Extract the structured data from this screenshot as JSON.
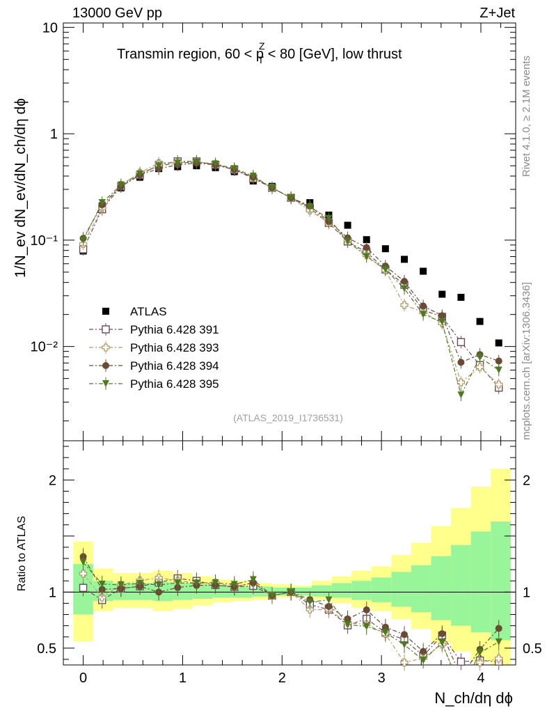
{
  "header": {
    "left": "13000 GeV pp",
    "right": "Z+Jet"
  },
  "side_labels": {
    "rivet": "Rivet 4.1.0, ≥ 2.1M events",
    "mcplots": "mcplots.cern.ch [arXiv:1306.3436]"
  },
  "chart_data": {
    "type": "scatter",
    "title_parts": [
      "Transmin region, 60 < p",
      "Z",
      "T",
      " < 80 [GeV], low thrust"
    ],
    "analysis_id": "(ATLAS_2019_I1736531)",
    "xlabel": "N_ch/dη dϕ",
    "ylabel": "1/N_ev dN_ev/dN_ch/dη dϕ",
    "ratio_ylabel": "Ratio to ATLAS",
    "x_range": [
      -0.2,
      4.35
    ],
    "y_range_log": [
      0.0013,
      11
    ],
    "ratio_range": [
      0.35,
      2.35
    ],
    "x_ticks": [
      "0",
      "1",
      "2",
      "3",
      "4"
    ],
    "y_ticks": [
      "10",
      "1",
      "10⁻¹",
      "10⁻²"
    ],
    "ratio_ticks": [
      "0.5",
      "1",
      "2"
    ],
    "x": [
      0.0,
      0.19,
      0.38,
      0.57,
      0.76,
      0.95,
      1.14,
      1.33,
      1.52,
      1.71,
      1.9,
      2.09,
      2.28,
      2.47,
      2.66,
      2.85,
      3.04,
      3.23,
      3.42,
      3.61,
      3.8,
      3.99,
      4.18
    ],
    "x_edges": [
      -0.1,
      0.1,
      0.3,
      0.5,
      0.7,
      0.9,
      1.1,
      1.3,
      1.5,
      1.7,
      1.9,
      2.1,
      2.3,
      2.5,
      2.7,
      2.9,
      3.1,
      3.3,
      3.5,
      3.7,
      3.9,
      4.1,
      4.3
    ],
    "band_yellow_lo": [
      0.56,
      0.83,
      0.86,
      0.86,
      0.83,
      0.85,
      0.88,
      0.91,
      0.92,
      0.93,
      0.95,
      0.96,
      0.93,
      0.9,
      0.86,
      0.83,
      0.76,
      0.67,
      0.55,
      0.47,
      0.38,
      0.3,
      0.2
    ],
    "band_yellow_hi": [
      1.45,
      1.21,
      1.17,
      1.17,
      1.19,
      1.17,
      1.14,
      1.11,
      1.1,
      1.08,
      1.07,
      1.06,
      1.1,
      1.14,
      1.19,
      1.23,
      1.33,
      1.44,
      1.59,
      1.75,
      1.94,
      2.1,
      2.18
    ],
    "band_green_lo": [
      0.8,
      0.92,
      0.93,
      0.93,
      0.92,
      0.93,
      0.94,
      0.95,
      0.95,
      0.96,
      0.97,
      0.97,
      0.96,
      0.95,
      0.93,
      0.91,
      0.87,
      0.82,
      0.75,
      0.7,
      0.64,
      0.57,
      0.5
    ],
    "band_green_hi": [
      1.25,
      1.1,
      1.08,
      1.08,
      1.09,
      1.08,
      1.07,
      1.06,
      1.05,
      1.05,
      1.04,
      1.04,
      1.06,
      1.08,
      1.1,
      1.13,
      1.18,
      1.24,
      1.32,
      1.42,
      1.54,
      1.63,
      1.68
    ],
    "series": [
      {
        "name": "ATLAS",
        "marker": "filled-square",
        "color": "#000000",
        "values": [
          0.079,
          0.21,
          0.31,
          0.39,
          0.47,
          0.49,
          0.5,
          0.48,
          0.44,
          0.36,
          0.32,
          0.25,
          0.225,
          0.172,
          0.138,
          0.101,
          0.083,
          0.066,
          0.051,
          0.031,
          0.029,
          0.0172,
          0.0108
        ]
      },
      {
        "name": "Pythia 6.428 391",
        "marker": "open-square",
        "color": "#6d4b5c",
        "values": [
          0.082,
          0.195,
          0.32,
          0.41,
          0.51,
          0.55,
          0.55,
          0.51,
          0.46,
          0.38,
          0.31,
          0.25,
          0.2,
          0.145,
          0.097,
          0.077,
          0.053,
          0.038,
          0.022,
          0.019,
          0.011,
          0.0067,
          0.0041
        ]
      },
      {
        "name": "Pythia 6.428 393",
        "marker": "open-cross",
        "color": "#b59a6a",
        "values": [
          0.092,
          0.2,
          0.33,
          0.43,
          0.53,
          0.54,
          0.54,
          0.52,
          0.46,
          0.39,
          0.31,
          0.25,
          0.19,
          0.145,
          0.1,
          0.072,
          0.052,
          0.0245,
          0.021,
          0.0165,
          0.0046,
          0.0064,
          0.0044
        ]
      },
      {
        "name": "Pythia 6.428 394",
        "marker": "filled-circle",
        "color": "#6b4a35",
        "values": [
          0.104,
          0.215,
          0.32,
          0.41,
          0.47,
          0.51,
          0.53,
          0.51,
          0.46,
          0.39,
          0.31,
          0.25,
          0.21,
          0.15,
          0.105,
          0.085,
          0.057,
          0.041,
          0.024,
          0.0195,
          0.0071,
          0.0084,
          0.0073
        ]
      },
      {
        "name": "Pythia 6.428 395",
        "marker": "filled-triangle-down",
        "color": "#4d7a1e",
        "values": [
          0.1,
          0.225,
          0.33,
          0.42,
          0.5,
          0.53,
          0.54,
          0.52,
          0.47,
          0.4,
          0.31,
          0.25,
          0.205,
          0.16,
          0.098,
          0.07,
          0.053,
          0.035,
          0.02,
          0.017,
          0.0035,
          0.0079,
          0.006
        ]
      }
    ]
  }
}
